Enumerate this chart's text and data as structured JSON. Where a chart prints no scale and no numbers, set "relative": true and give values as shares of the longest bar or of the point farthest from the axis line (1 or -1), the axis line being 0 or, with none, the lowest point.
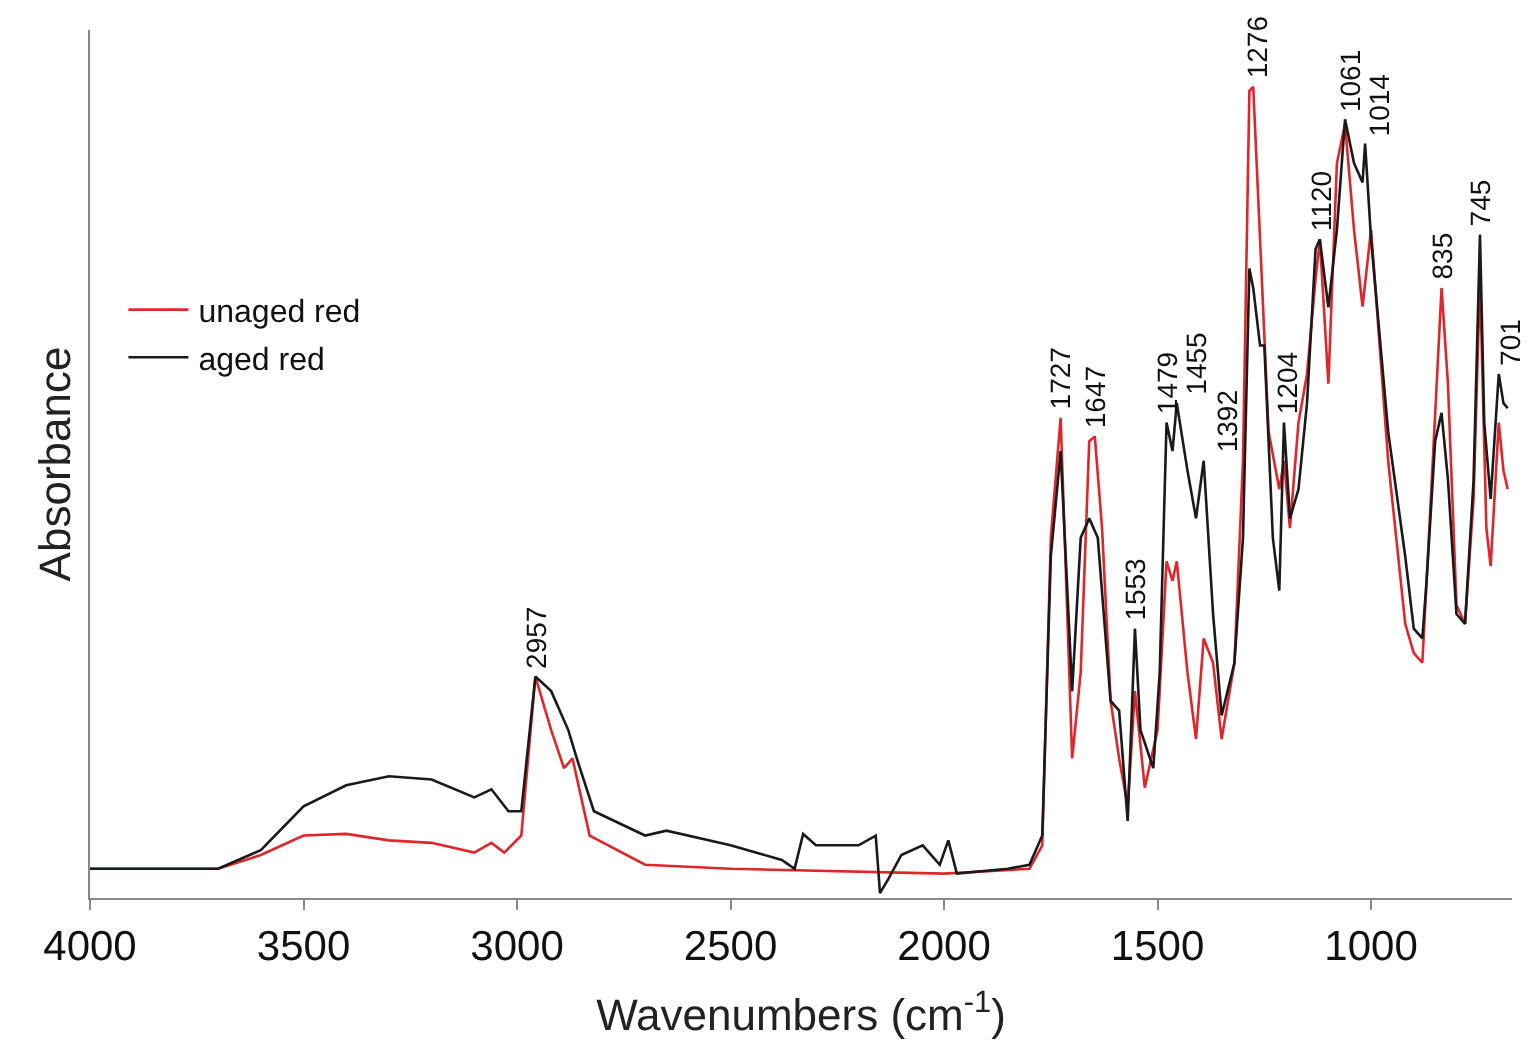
{
  "chart_data": {
    "type": "line",
    "relative": true,
    "xlabel": "Wavenumbers (cm$^{-1}$)",
    "ylabel": "Absorbance",
    "xlim": [
      4000,
      670
    ],
    "xticks": [
      4000,
      3500,
      3000,
      2500,
      2000,
      1500,
      1000
    ],
    "legend": "left",
    "marker": "none",
    "line_style": "solid",
    "series": [
      {
        "name": "unaged red",
        "color": "#e0262b",
        "x": [
          4000,
          3700,
          3600,
          3500,
          3400,
          3300,
          3200,
          3100,
          3060,
          3030,
          2990,
          2957,
          2920,
          2890,
          2870,
          2830,
          2700,
          2500,
          2000,
          1800,
          1770,
          1750,
          1727,
          1700,
          1680,
          1660,
          1647,
          1630,
          1610,
          1590,
          1570,
          1553,
          1530,
          1500,
          1479,
          1465,
          1455,
          1430,
          1410,
          1392,
          1370,
          1350,
          1320,
          1300,
          1285,
          1276,
          1260,
          1240,
          1215,
          1204,
          1190,
          1170,
          1150,
          1130,
          1120,
          1100,
          1080,
          1061,
          1040,
          1020,
          1000,
          960,
          920,
          900,
          880,
          860,
          835,
          820,
          800,
          780,
          760,
          745,
          730,
          720,
          701,
          690,
          680
        ],
        "values": [
          0.036,
          0.036,
          0.053,
          0.077,
          0.079,
          0.071,
          0.068,
          0.056,
          0.068,
          0.056,
          0.077,
          0.273,
          0.207,
          0.16,
          0.172,
          0.077,
          0.041,
          0.036,
          0.03,
          0.036,
          0.065,
          0.444,
          0.592,
          0.172,
          0.278,
          0.563,
          0.569,
          0.456,
          0.243,
          0.172,
          0.113,
          0.255,
          0.136,
          0.207,
          0.415,
          0.391,
          0.415,
          0.278,
          0.196,
          0.32,
          0.29,
          0.196,
          0.29,
          0.539,
          0.995,
          1,
          0.812,
          0.575,
          0.504,
          0.539,
          0.456,
          0.586,
          0.646,
          0.763,
          0.812,
          0.634,
          0.906,
          0.954,
          0.824,
          0.729,
          0.824,
          0.539,
          0.338,
          0.302,
          0.29,
          0.492,
          0.752,
          0.634,
          0.361,
          0.338,
          0.492,
          0.764,
          0.456,
          0.409,
          0.586,
          0.527,
          0.504
        ]
      },
      {
        "name": "aged red",
        "color": "#1a1a1a",
        "x": [
          4000,
          3700,
          3600,
          3500,
          3400,
          3300,
          3200,
          3100,
          3060,
          3020,
          2990,
          2957,
          2920,
          2880,
          2860,
          2820,
          2700,
          2650,
          2500,
          2380,
          2350,
          2330,
          2300,
          2200,
          2160,
          2150,
          2130,
          2100,
          2050,
          2010,
          1990,
          1970,
          1850,
          1800,
          1770,
          1750,
          1727,
          1700,
          1680,
          1660,
          1640,
          1610,
          1590,
          1570,
          1553,
          1540,
          1510,
          1495,
          1479,
          1465,
          1455,
          1430,
          1410,
          1392,
          1370,
          1350,
          1320,
          1300,
          1285,
          1276,
          1260,
          1250,
          1230,
          1215,
          1204,
          1190,
          1170,
          1150,
          1130,
          1120,
          1100,
          1080,
          1061,
          1040,
          1020,
          1014,
          1000,
          960,
          920,
          900,
          880,
          870,
          850,
          835,
          820,
          800,
          780,
          760,
          745,
          735,
          720,
          701,
          690,
          680
        ],
        "values": [
          0.036,
          0.036,
          0.059,
          0.113,
          0.139,
          0.15,
          0.146,
          0.124,
          0.134,
          0.107,
          0.107,
          0.273,
          0.255,
          0.207,
          0.172,
          0.107,
          0.077,
          0.083,
          0.065,
          0.047,
          0.036,
          0.079,
          0.065,
          0.065,
          0.077,
          0.006,
          0.024,
          0.053,
          0.065,
          0.041,
          0.071,
          0.03,
          0.036,
          0.041,
          0.077,
          0.421,
          0.551,
          0.255,
          0.444,
          0.468,
          0.444,
          0.243,
          0.231,
          0.095,
          0.332,
          0.207,
          0.16,
          0.278,
          0.586,
          0.551,
          0.61,
          0.527,
          0.468,
          0.539,
          0.35,
          0.225,
          0.29,
          0.444,
          0.776,
          0.752,
          0.681,
          0.681,
          0.444,
          0.379,
          0.586,
          0.468,
          0.504,
          0.61,
          0.8,
          0.812,
          0.728,
          0.824,
          0.96,
          0.906,
          0.882,
          0.93,
          0.812,
          0.575,
          0.421,
          0.332,
          0.32,
          0.391,
          0.563,
          0.598,
          0.516,
          0.35,
          0.338,
          0.515,
          0.818,
          0.586,
          0.492,
          0.646,
          0.61,
          0.604
        ]
      }
    ],
    "annotations": [
      {
        "text": "2957",
        "x": 2957,
        "y": 0.273
      },
      {
        "text": "1727",
        "x": 1727,
        "y": 0.592
      },
      {
        "text": "1647",
        "x": 1647,
        "y": 0.569
      },
      {
        "text": "1553",
        "x": 1553,
        "y": 0.332
      },
      {
        "text": "1479",
        "x": 1479,
        "y": 0.586
      },
      {
        "text": "1455",
        "x": 1455,
        "y": 0.61
      },
      {
        "text": "1392",
        "x": 1392,
        "y": 0.539
      },
      {
        "text": "1276",
        "x": 1276,
        "y": 1
      },
      {
        "text": "1204",
        "x": 1204,
        "y": 0.586
      },
      {
        "text": "1120",
        "x": 1120,
        "y": 0.812
      },
      {
        "text": "1061",
        "x": 1061,
        "y": 0.96
      },
      {
        "text": "1014",
        "x": 1014,
        "y": 0.93
      },
      {
        "text": "835",
        "x": 835,
        "y": 0.752
      },
      {
        "text": "745",
        "x": 745,
        "y": 0.818
      },
      {
        "text": "701",
        "x": 701,
        "y": 0.646
      }
    ]
  }
}
